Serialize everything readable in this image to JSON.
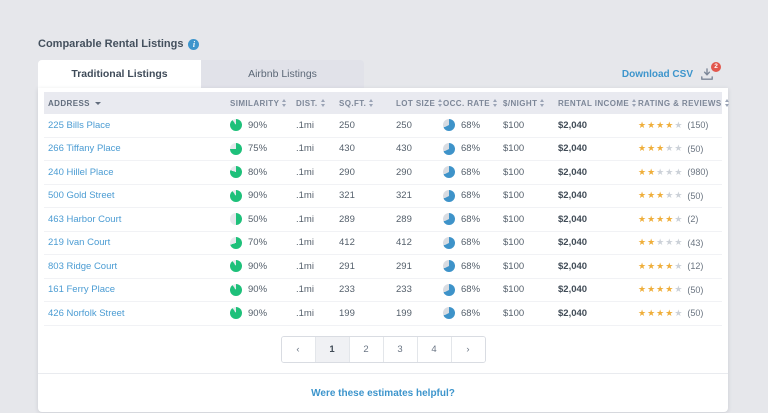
{
  "header": {
    "title": "Comparable Rental Listings"
  },
  "tabs": {
    "traditional": "Traditional Listings",
    "airbnb": "Airbnb Listings"
  },
  "download_csv": {
    "label": "Download CSV",
    "badge_count": "2"
  },
  "table": {
    "columns": [
      "ADDRESS",
      "SIMILARITY",
      "DIST.",
      "SQ.FT.",
      "LOT SIZE",
      "OCC. RATE",
      "$/NIGHT",
      "RENTAL INCOME",
      "RATING & REVIEWS"
    ],
    "rows": [
      {
        "address": "225 Bills Place",
        "similarity": "90%",
        "similarity_pct": 90,
        "dist": ".1mi",
        "sqft": "250",
        "lot_size": "250",
        "occ_rate": "68%",
        "occ_pct": 68,
        "price_night": "$100",
        "rental_income": "$2,040",
        "stars": 4,
        "reviews": "(150)"
      },
      {
        "address": "266 Tiffany Place",
        "similarity": "75%",
        "similarity_pct": 75,
        "dist": ".1mi",
        "sqft": "430",
        "lot_size": "430",
        "occ_rate": "68%",
        "occ_pct": 68,
        "price_night": "$100",
        "rental_income": "$2,040",
        "stars": 3,
        "reviews": "(50)"
      },
      {
        "address": "240 Hillel Place",
        "similarity": "80%",
        "similarity_pct": 80,
        "dist": ".1mi",
        "sqft": "290",
        "lot_size": "290",
        "occ_rate": "68%",
        "occ_pct": 68,
        "price_night": "$100",
        "rental_income": "$2,040",
        "stars": 2,
        "reviews": "(980)"
      },
      {
        "address": "500 Gold Street",
        "similarity": "90%",
        "similarity_pct": 90,
        "dist": ".1mi",
        "sqft": "321",
        "lot_size": "321",
        "occ_rate": "68%",
        "occ_pct": 68,
        "price_night": "$100",
        "rental_income": "$2,040",
        "stars": 3,
        "reviews": "(50)"
      },
      {
        "address": "463 Harbor Court",
        "similarity": "50%",
        "similarity_pct": 50,
        "dist": ".1mi",
        "sqft": "289",
        "lot_size": "289",
        "occ_rate": "68%",
        "occ_pct": 68,
        "price_night": "$100",
        "rental_income": "$2,040",
        "stars": 4,
        "reviews": "(2)"
      },
      {
        "address": "219 Ivan Court",
        "similarity": "70%",
        "similarity_pct": 70,
        "dist": ".1mi",
        "sqft": "412",
        "lot_size": "412",
        "occ_rate": "68%",
        "occ_pct": 68,
        "price_night": "$100",
        "rental_income": "$2,040",
        "stars": 2,
        "reviews": "(43)"
      },
      {
        "address": "803 Ridge Court",
        "similarity": "90%",
        "similarity_pct": 90,
        "dist": ".1mi",
        "sqft": "291",
        "lot_size": "291",
        "occ_rate": "68%",
        "occ_pct": 68,
        "price_night": "$100",
        "rental_income": "$2,040",
        "stars": 4,
        "reviews": "(12)"
      },
      {
        "address": "161 Ferry Place",
        "similarity": "90%",
        "similarity_pct": 90,
        "dist": ".1mi",
        "sqft": "233",
        "lot_size": "233",
        "occ_rate": "68%",
        "occ_pct": 68,
        "price_night": "$100",
        "rental_income": "$2,040",
        "stars": 4,
        "reviews": "(50)"
      },
      {
        "address": "426 Norfolk Street",
        "similarity": "90%",
        "similarity_pct": 90,
        "dist": ".1mi",
        "sqft": "199",
        "lot_size": "199",
        "occ_rate": "68%",
        "occ_pct": 68,
        "price_night": "$100",
        "rental_income": "$2,040",
        "stars": 4,
        "reviews": "(50)"
      }
    ]
  },
  "pagination": {
    "prev": "‹",
    "pages": [
      "1",
      "2",
      "3",
      "4"
    ],
    "active_page": "1",
    "next": "›"
  },
  "footer": {
    "feedback_link": "Were these estimates helpful?"
  },
  "colors": {
    "similarity_green": "#1ec07a",
    "similarity_empty": "#e7e9ed",
    "occ_blue": "#3e93c9",
    "occ_empty": "#d8dce2",
    "link_blue": "#3d95cc",
    "star_gold": "#efae3a",
    "badge_red": "#e2574c"
  }
}
